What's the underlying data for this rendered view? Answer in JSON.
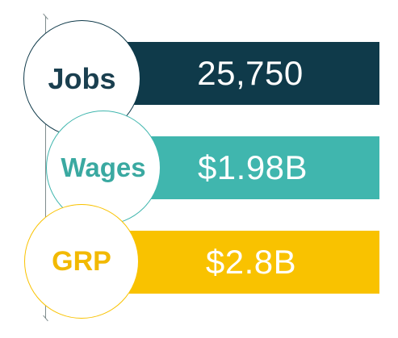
{
  "colors": {
    "jobs": "#0f3a4a",
    "wages": "#40b6ae",
    "grp": "#f9c200"
  },
  "metrics": [
    {
      "label": "Jobs",
      "value": "25,750"
    },
    {
      "label": "Wages",
      "value": "$1.98B"
    },
    {
      "label": "GRP",
      "value": "$2.8B"
    }
  ]
}
